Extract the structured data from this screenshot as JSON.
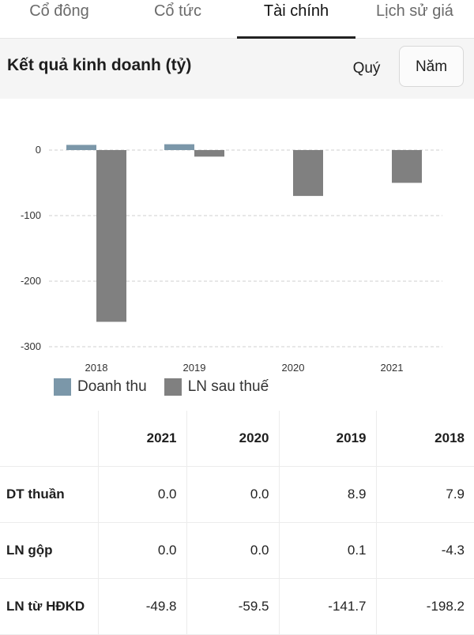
{
  "tabs": [
    {
      "label": "Cổ đông",
      "active": false
    },
    {
      "label": "Cổ tức",
      "active": false
    },
    {
      "label": "Tài chính",
      "active": true
    },
    {
      "label": "Lịch sử giá",
      "active": false
    }
  ],
  "section": {
    "title": "Kết quả kinh doanh (tỷ)",
    "period_quarter": "Quý",
    "period_year": "Năm"
  },
  "legend": {
    "revenue": "Doanh thu",
    "profit": "LN sau thuế"
  },
  "colors": {
    "revenue": "#7b97a9",
    "profit": "#808080",
    "grid": "#cfcfcf"
  },
  "chart_data": {
    "type": "bar",
    "categories": [
      "2018",
      "2019",
      "2020",
      "2021"
    ],
    "series": [
      {
        "name": "Doanh thu",
        "values": [
          7.9,
          8.9,
          0.0,
          0.0
        ]
      },
      {
        "name": "LN sau thuế",
        "values": [
          -262,
          -10,
          -70,
          -50
        ]
      }
    ],
    "yticks": [
      0,
      -100,
      -200,
      -300
    ],
    "ylim": [
      -300,
      0
    ],
    "grid": true,
    "legend_position": "bottom-left"
  },
  "table": {
    "headers": [
      "",
      "2021",
      "2020",
      "2019",
      "2018"
    ],
    "rows": [
      {
        "label": "DT thuần",
        "values": [
          "0.0",
          "0.0",
          "8.9",
          "7.9"
        ]
      },
      {
        "label": "LN gộp",
        "values": [
          "0.0",
          "0.0",
          "0.1",
          "-4.3"
        ]
      },
      {
        "label": "LN từ HĐKD",
        "values": [
          "-49.8",
          "-59.5",
          "-141.7",
          "-198.2"
        ]
      }
    ]
  }
}
